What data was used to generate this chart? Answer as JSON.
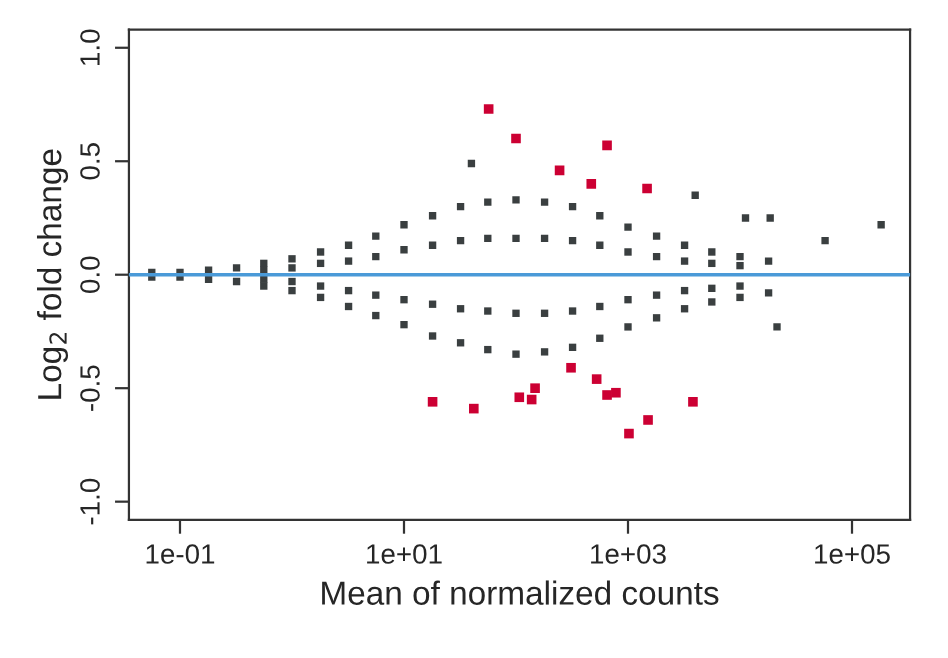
{
  "chart_data": {
    "type": "scatter",
    "xlabel": "Mean of normalized counts",
    "ylabel": "Log$_{2}$ fold change",
    "log": "x",
    "xlim": [
      0.035,
      330000
    ],
    "ylim": [
      -1.08,
      1.08
    ],
    "xticks": [
      {
        "value": 0.1,
        "label": "1e-01"
      },
      {
        "value": 10,
        "label": "1e+01"
      },
      {
        "value": 1000,
        "label": "1e+03"
      },
      {
        "value": 100000,
        "label": "1e+05"
      }
    ],
    "yticks": [
      {
        "value": -1.0,
        "label": "-1.0"
      },
      {
        "value": -0.5,
        "label": "-0.5"
      },
      {
        "value": 0.0,
        "label": "0.0"
      },
      {
        "value": 0.5,
        "label": "0.5"
      },
      {
        "value": 1.0,
        "label": "1.0"
      }
    ],
    "grid": false,
    "legend": false,
    "marker": "square",
    "ref_lines": [
      {
        "axis": "y",
        "value": 0,
        "color": "#4a9ad8"
      }
    ],
    "series": [
      {
        "color": "#3a3f40",
        "x": [
          0.056,
          0.056,
          0.1,
          0.1,
          0.18,
          0.18,
          0.32,
          0.32,
          0.56,
          0.56,
          0.56,
          0.56,
          1,
          1,
          1,
          1,
          1.8,
          1.8,
          1.8,
          1.8,
          3.2,
          3.2,
          3.2,
          3.2,
          5.6,
          5.6,
          5.6,
          5.6,
          10,
          10,
          10,
          10,
          18,
          18,
          18,
          18,
          32,
          32,
          32,
          32,
          56,
          56,
          56,
          56,
          100,
          100,
          100,
          100,
          180,
          180,
          180,
          180,
          320,
          320,
          320,
          320,
          560,
          560,
          560,
          560,
          1000,
          1000,
          1000,
          1000,
          1800,
          1800,
          1800,
          1800,
          3200,
          3200,
          3200,
          3200,
          5600,
          5600,
          5600,
          5600,
          10000,
          10000,
          10000,
          10000,
          18000,
          18000,
          40,
          3980,
          11200,
          18600,
          57500,
          182000,
          21400
        ],
        "values": [
          0.01,
          -0.01,
          0.01,
          -0.01,
          0.02,
          -0.02,
          0.03,
          -0.03,
          0.05,
          0.02,
          -0.02,
          -0.05,
          0.07,
          0.03,
          -0.03,
          -0.07,
          0.1,
          0.05,
          -0.05,
          -0.1,
          0.13,
          0.06,
          -0.07,
          -0.14,
          0.17,
          0.08,
          -0.09,
          -0.18,
          0.22,
          0.11,
          -0.11,
          -0.22,
          0.26,
          0.13,
          -0.13,
          -0.27,
          0.3,
          0.15,
          -0.15,
          -0.3,
          0.32,
          0.16,
          -0.16,
          -0.33,
          0.33,
          0.16,
          -0.17,
          -0.35,
          0.32,
          0.16,
          -0.17,
          -0.34,
          0.3,
          0.15,
          -0.16,
          -0.32,
          0.26,
          0.13,
          -0.14,
          -0.28,
          0.21,
          0.1,
          -0.11,
          -0.23,
          0.17,
          0.08,
          -0.09,
          -0.19,
          0.13,
          0.06,
          -0.07,
          -0.15,
          0.1,
          0.05,
          -0.06,
          -0.12,
          0.08,
          0.04,
          -0.05,
          -0.1,
          0.06,
          -0.08,
          0.49,
          0.35,
          0.25,
          0.25,
          0.15,
          0.22,
          -0.23
        ]
      },
      {
        "color": "#cc0033",
        "x": [
          57,
          100,
          650,
          245,
          470,
          1480,
          18,
          42,
          107,
          138,
          148,
          310,
          525,
          650,
          780,
          1020,
          1510,
          3800
        ],
        "values": [
          0.73,
          0.6,
          0.57,
          0.46,
          0.4,
          0.38,
          -0.56,
          -0.59,
          -0.54,
          -0.55,
          -0.5,
          -0.41,
          -0.46,
          -0.53,
          -0.52,
          -0.7,
          -0.64,
          -0.56
        ]
      }
    ]
  }
}
